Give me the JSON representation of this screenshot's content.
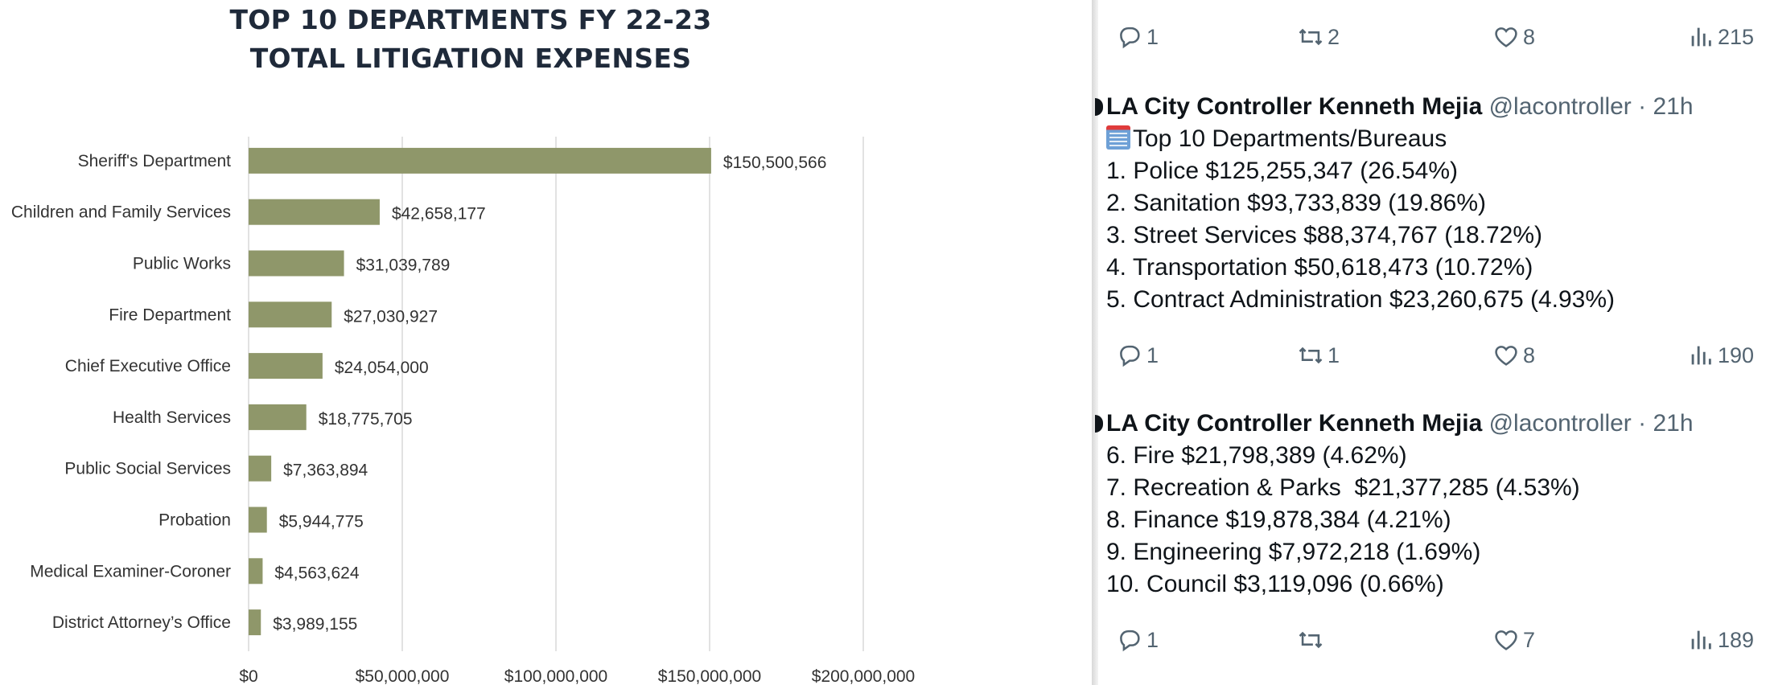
{
  "chart": {
    "title_line1": "TOP 10 DEPARTMENTS FY 22-23",
    "title_line2": "TOTAL LITIGATION EXPENSES"
  },
  "chart_data": {
    "type": "bar",
    "orientation": "horizontal",
    "title": "TOP 10 DEPARTMENTS FY 22-23 TOTAL LITIGATION EXPENSES",
    "categories": [
      "Sheriff's Department",
      "Children and Family Services",
      "Public Works",
      "Fire Department",
      "Chief Executive Office",
      "Health Services",
      "Public Social Services",
      "Probation",
      "Medical Examiner-Coroner",
      "District Attorney’s Office"
    ],
    "values": [
      150500566,
      42658177,
      31039789,
      27030927,
      24054000,
      18775705,
      7363894,
      5944775,
      4563624,
      3989155
    ],
    "data_labels": [
      "$150,500,566",
      "$42,658,177",
      "$31,039,789",
      "$27,030,927",
      "$24,054,000",
      "$18,775,705",
      "$7,363,894",
      "$5,944,775",
      "$4,563,624",
      "$3,989,155"
    ],
    "x_ticks": [
      0,
      50000000,
      100000000,
      150000000,
      200000000
    ],
    "x_tick_labels": [
      "$0",
      "$50,000,000",
      "$100,000,000",
      "$150,000,000",
      "$200,000,000"
    ],
    "xlim": [
      0,
      200000000
    ],
    "grid": "vertical",
    "xlabel": "",
    "ylabel": "",
    "colors": {
      "bar": "#8f976a",
      "grid": "#d9d9d9",
      "text": "#333333"
    }
  },
  "tweets": {
    "top_actions": {
      "reply": "1",
      "retweet": "2",
      "like": "8",
      "views": "215"
    },
    "tweet1": {
      "name": "LA City Controller Kenneth Mejia",
      "meta": " @lacontroller · 21h",
      "lines": [
        "Top 10 Departments/Bureaus",
        "1. Police $125,255,347 (26.54%)",
        "2. Sanitation $93,733,839 (19.86%)",
        "3. Street Services $88,374,767 (18.72%)",
        "4. Transportation $50,618,473 (10.72%)",
        "5. Contract Administration $23,260,675 (4.93%)"
      ],
      "actions": {
        "reply": "1",
        "retweet": "1",
        "like": "8",
        "views": "190"
      }
    },
    "tweet2": {
      "name": "LA City Controller Kenneth Mejia",
      "meta": " @lacontroller · 21h",
      "lines": [
        "6. Fire $21,798,389 (4.62%)",
        "7. Recreation & Parks  $21,377,285 (4.53%)",
        "8. Finance $19,878,384 (4.21%)",
        "9. Engineering $7,972,218 (1.69%)",
        "10. Council $3,119,096 (0.66%)"
      ],
      "actions": {
        "reply": "1",
        "retweet": "",
        "like": "7",
        "views": "189"
      }
    },
    "icons": {
      "reply": "reply-icon",
      "retweet": "retweet-icon",
      "like": "heart-icon",
      "views": "views-icon",
      "emoji": "office-building-emoji-icon"
    }
  }
}
